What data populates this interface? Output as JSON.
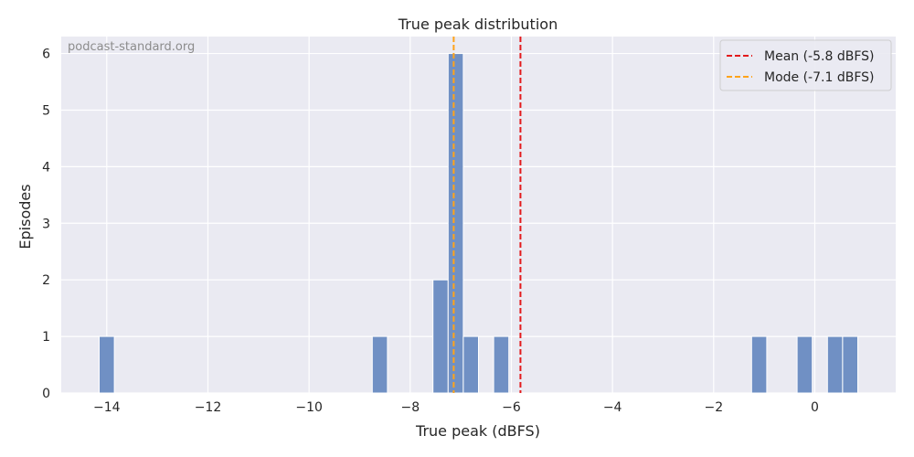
{
  "chart_data": {
    "type": "bar",
    "title": "True peak distribution",
    "xlabel": "True peak (dBFS)",
    "ylabel": "Episodes",
    "watermark": "podcast-standard.org",
    "xlim": [
      -14.9,
      1.6
    ],
    "ylim": [
      0,
      6.3
    ],
    "xticks": [
      -14,
      -12,
      -10,
      -8,
      -6,
      -4,
      -2,
      0
    ],
    "xtick_labels": [
      "−14",
      "−12",
      "−10",
      "−8",
      "−6",
      "−4",
      "−2",
      "0"
    ],
    "yticks": [
      0,
      1,
      2,
      3,
      4,
      5,
      6
    ],
    "ytick_labels": [
      "0",
      "1",
      "2",
      "3",
      "4",
      "5",
      "6"
    ],
    "bin_width": 0.3,
    "bins": [
      {
        "x": -14.0,
        "count": 1
      },
      {
        "x": -8.6,
        "count": 1
      },
      {
        "x": -7.4,
        "count": 2
      },
      {
        "x": -7.1,
        "count": 6
      },
      {
        "x": -6.8,
        "count": 1
      },
      {
        "x": -6.2,
        "count": 1
      },
      {
        "x": -1.1,
        "count": 1
      },
      {
        "x": -0.2,
        "count": 1
      },
      {
        "x": 0.4,
        "count": 1
      },
      {
        "x": 0.7,
        "count": 1
      }
    ],
    "reference_lines": [
      {
        "name": "Mean (-5.8 dBFS)",
        "x": -5.82,
        "color": "#e31a1c",
        "legend": "Mean (-5.8 dBFS)"
      },
      {
        "name": "Mode (-7.1 dBFS)",
        "x": -7.14,
        "color": "#ffa31a",
        "legend": "Mode (-7.1 dBFS)"
      }
    ],
    "legend_position": "top-right",
    "grid": true,
    "colors": {
      "bar": "#7090c4",
      "background": "#eaeaf2",
      "grid": "#ffffff"
    }
  }
}
